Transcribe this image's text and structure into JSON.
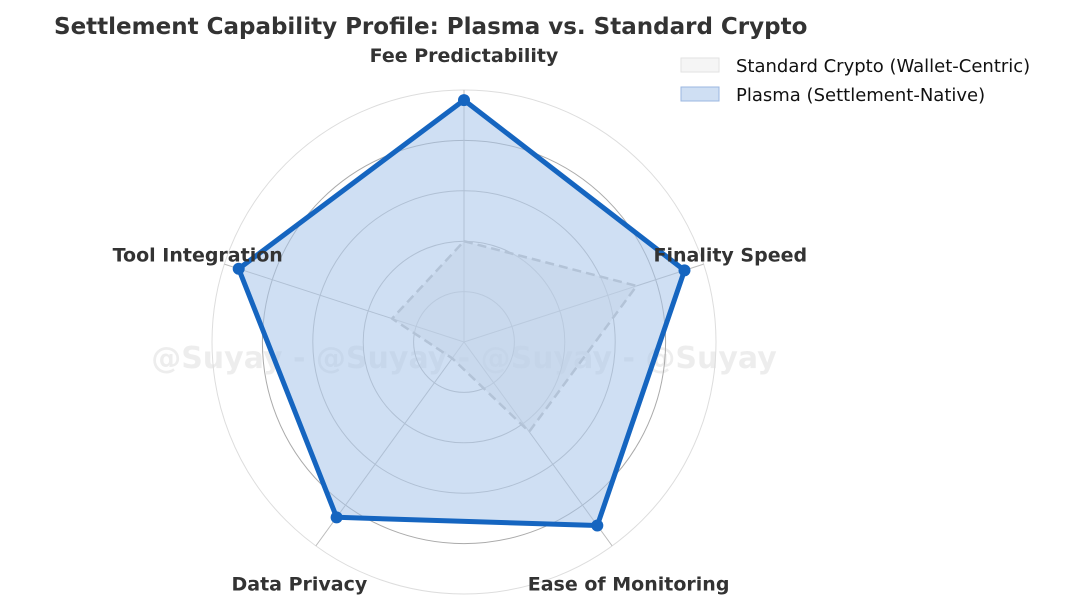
{
  "chart_data": {
    "type": "radar",
    "title": "Settlement Capability Profile: Plasma vs. Standard Crypto",
    "axes": [
      "Fee Predictability",
      "Finality Speed",
      "Ease of Monitoring",
      "Data Privacy",
      "Tool Integration"
    ],
    "rlim": [
      0,
      5
    ],
    "grid": true,
    "legend_position": "top-right",
    "watermark": "@Suyay - @Suyay - @Suyay - @Suyay",
    "series": [
      {
        "name": "Standard Crypto (Wallet-Centric)",
        "values": [
          2.0,
          3.6,
          2.2,
          0.4,
          1.5
        ],
        "line_color": "#c0c0c0",
        "fill_color": "#e6e6e6",
        "line_style": "dashed"
      },
      {
        "name": "Plasma (Settlement-Native)",
        "values": [
          4.8,
          4.6,
          4.5,
          4.3,
          4.7
        ],
        "line_color": "#1565c0",
        "fill_color": "#a8c4ea",
        "line_style": "solid"
      }
    ]
  }
}
